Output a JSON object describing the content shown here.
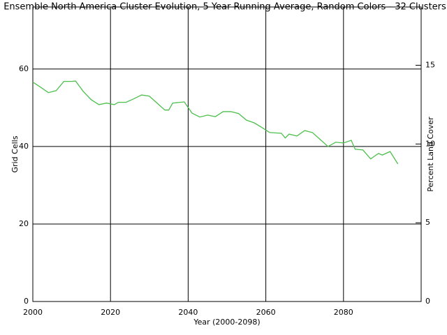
{
  "chart_data": {
    "type": "line",
    "title": "Ensemble North America Cluster Evolution, 5 Year Running Average, Random Colors - 32 Clusters",
    "xlabel": "Year (2000-2098)",
    "ylabel": "Grid Cells",
    "y2label": "Percent Land Cover",
    "xlim": [
      2000,
      2100
    ],
    "xticks": [
      2000,
      2020,
      2040,
      2060,
      2080
    ],
    "ylim": [
      0,
      76
    ],
    "yticks": [
      0,
      20,
      40,
      60
    ],
    "y2lim": [
      0,
      18.7
    ],
    "y2ticks": [
      0,
      5,
      10,
      15
    ],
    "grid": true,
    "x": [
      2000,
      2002,
      2004,
      2006,
      2008,
      2010,
      2011,
      2013,
      2015,
      2017,
      2019,
      2021,
      2022,
      2024,
      2026,
      2028,
      2030,
      2032,
      2034,
      2035,
      2036,
      2039,
      2041,
      2043,
      2045,
      2047,
      2049,
      2051,
      2053,
      2055,
      2057,
      2059,
      2061,
      2064,
      2065,
      2066,
      2068,
      2070,
      2072,
      2074,
      2076,
      2078,
      2080,
      2082,
      2083,
      2085,
      2087,
      2089,
      2090,
      2092,
      2094
    ],
    "series": [
      {
        "color": "#4dbf4d",
        "values": [
          56.6,
          55.3,
          53.9,
          54.4,
          56.8,
          56.8,
          56.9,
          54.2,
          52.1,
          50.8,
          51.2,
          50.8,
          51.4,
          51.4,
          52.3,
          53.3,
          53,
          51.2,
          49.4,
          49.4,
          51.2,
          51.5,
          48.6,
          47.6,
          48.1,
          47.7,
          49,
          49,
          48.5,
          46.8,
          46.1,
          44.9,
          43.6,
          43.4,
          42.2,
          43.2,
          42.7,
          44.1,
          43.6,
          41.8,
          40,
          41.1,
          40.9,
          41.6,
          39.3,
          39.1,
          36.8,
          38.2,
          37.8,
          38.7,
          35.5
        ]
      }
    ]
  }
}
